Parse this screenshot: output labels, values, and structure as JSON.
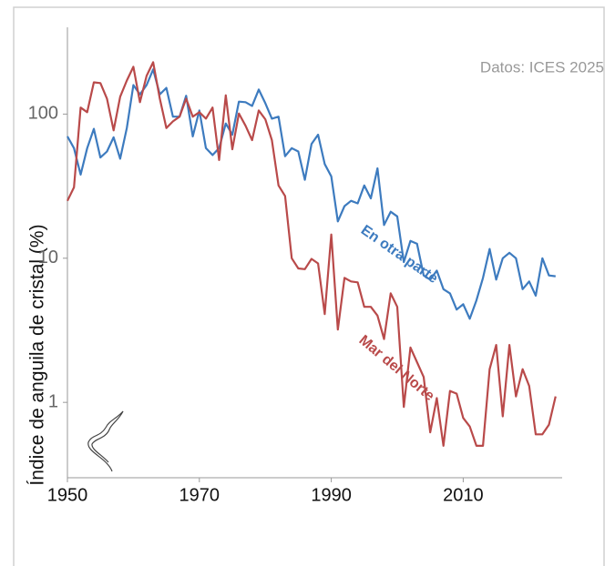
{
  "chart_data": {
    "type": "line",
    "y_label": "Índice de anguila de cristal (%)",
    "source": "Datos: ICES 2025",
    "log_y": true,
    "xlim": [
      1950,
      2025
    ],
    "xticks": [
      1950,
      1970,
      1990,
      2010
    ],
    "ylim": [
      0.3,
      400
    ],
    "yticks": [
      1,
      10,
      100
    ],
    "x": [
      1950,
      1951,
      1952,
      1953,
      1954,
      1955,
      1956,
      1957,
      1958,
      1959,
      1960,
      1961,
      1962,
      1963,
      1964,
      1965,
      1966,
      1967,
      1968,
      1969,
      1970,
      1971,
      1972,
      1973,
      1974,
      1975,
      1976,
      1977,
      1978,
      1979,
      1980,
      1981,
      1982,
      1983,
      1984,
      1985,
      1986,
      1987,
      1988,
      1989,
      1990,
      1991,
      1992,
      1993,
      1994,
      1995,
      1996,
      1997,
      1998,
      1999,
      2000,
      2001,
      2002,
      2003,
      2004,
      2005,
      2006,
      2007,
      2008,
      2009,
      2010,
      2011,
      2012,
      2013,
      2014,
      2015,
      2016,
      2017,
      2018,
      2019,
      2020,
      2021,
      2022,
      2023,
      2024
    ],
    "series": [
      {
        "name": "En otra parte",
        "color": "#3d7bbf",
        "values": [
          70,
          58,
          38,
          58,
          79,
          50,
          55,
          69,
          49,
          80,
          159,
          137,
          159,
          204,
          137,
          152,
          96,
          96,
          134,
          70,
          106,
          58,
          52,
          58,
          86,
          72,
          122,
          121,
          114,
          148,
          119,
          93,
          96,
          51,
          58,
          55,
          35,
          62,
          72,
          45,
          37,
          18,
          23,
          25,
          24,
          32,
          26,
          42,
          17,
          21,
          19.5,
          9.4,
          13.2,
          12.6,
          7.6,
          7.1,
          8.2,
          6.1,
          5.7,
          4.4,
          4.8,
          3.8,
          5.1,
          7.3,
          11.6,
          7.1,
          10,
          10.9,
          10,
          6.1,
          6.9,
          5.5,
          10,
          7.6,
          7.5
        ]
      },
      {
        "name": "Mar del Norte",
        "color": "#b94a4a",
        "values": [
          25,
          31,
          111,
          103,
          166,
          164,
          128,
          77,
          132,
          171,
          213,
          121,
          184,
          229,
          128,
          80,
          89,
          96,
          128,
          96,
          103,
          93,
          111,
          48,
          135,
          57,
          101,
          83,
          66,
          106,
          92,
          66,
          32,
          27,
          10,
          8.5,
          8.4,
          9.9,
          9.2,
          4.1,
          14.6,
          3.2,
          7.3,
          6.9,
          6.8,
          4.6,
          4.6,
          4.0,
          2.75,
          5.7,
          4.6,
          0.93,
          2.4,
          1.9,
          1.5,
          0.62,
          1.07,
          0.5,
          1.2,
          1.15,
          0.78,
          0.68,
          0.5,
          0.5,
          1.7,
          2.5,
          0.8,
          2.5,
          1.1,
          1.7,
          1.3,
          0.6,
          0.6,
          0.7,
          1.1
        ]
      }
    ]
  }
}
